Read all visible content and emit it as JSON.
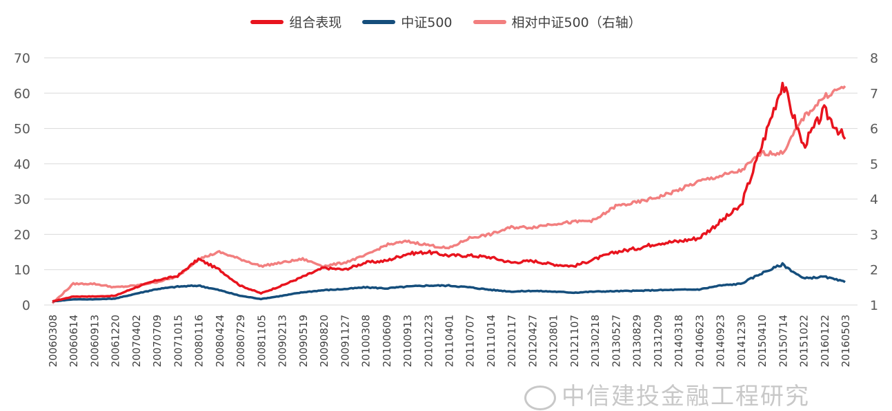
{
  "chart_data": {
    "type": "line",
    "title": "",
    "legend": {
      "placement": "top-center",
      "entries": [
        {
          "label": "组合表现",
          "color": "#e8141e"
        },
        {
          "label": "中证500",
          "color": "#154e7c"
        },
        {
          "label": "相对中证500（右轴）",
          "color": "#f27f7f"
        }
      ]
    },
    "y_left": {
      "min": 0,
      "max": 70,
      "ticks": [
        "0",
        "10",
        "20",
        "30",
        "40",
        "50",
        "60",
        "70"
      ]
    },
    "y_right": {
      "min": 1,
      "max": 8,
      "ticks": [
        "1",
        "2",
        "3",
        "4",
        "5",
        "6",
        "7",
        "8"
      ]
    },
    "grid": true,
    "x_tick_labels": [
      "20060308",
      "20060614",
      "20060913",
      "20061220",
      "20070402",
      "20070709",
      "20071015",
      "20080116",
      "20080424",
      "20080729",
      "20081105",
      "20090213",
      "20090519",
      "20090820",
      "20091127",
      "20100308",
      "20100609",
      "20100913",
      "20101223",
      "20110401",
      "20110707",
      "20111014",
      "20120117",
      "20120427",
      "20120801",
      "20121107",
      "20130218",
      "20130527",
      "20130829",
      "20131209",
      "20140318",
      "20140623",
      "20140923",
      "20141230",
      "20150410",
      "20150714",
      "20151022",
      "20160122",
      "20160503"
    ],
    "series": [
      {
        "name": "组合表现",
        "axis": "left",
        "color": "#e8141e",
        "values": [
          1,
          2.4,
          2.4,
          2.6,
          5,
          7,
          8.2,
          13,
          10,
          5.5,
          3.3,
          5.5,
          8,
          10.5,
          10,
          12,
          12.5,
          14.5,
          15,
          14,
          14,
          13.5,
          12,
          12.5,
          11.5,
          11,
          13,
          15,
          16,
          17.5,
          18,
          19,
          23.5,
          28,
          45,
          63,
          45,
          55,
          47
        ]
      },
      {
        "name": "中证500",
        "axis": "left",
        "color": "#154e7c",
        "values": [
          1,
          1.6,
          1.6,
          1.8,
          3.2,
          4.5,
          5.2,
          5.5,
          4.2,
          2.6,
          1.7,
          2.6,
          3.6,
          4.2,
          4.5,
          5,
          4.7,
          5.2,
          5.5,
          5.5,
          5,
          4.3,
          3.8,
          4,
          3.8,
          3.5,
          3.8,
          3.9,
          4,
          4.2,
          4.3,
          4.4,
          5.5,
          6,
          9,
          11.5,
          7.5,
          8,
          6.5
        ]
      },
      {
        "name": "相对中证500（右轴）",
        "axis": "right",
        "color": "#f27f7f",
        "values": [
          1.05,
          1.6,
          1.6,
          1.5,
          1.55,
          1.65,
          1.8,
          2.3,
          2.5,
          2.3,
          2.1,
          2.2,
          2.3,
          2.1,
          2.2,
          2.4,
          2.7,
          2.8,
          2.7,
          2.6,
          2.9,
          3.0,
          3.2,
          3.2,
          3.3,
          3.35,
          3.4,
          3.8,
          3.9,
          4.05,
          4.25,
          4.5,
          4.65,
          4.8,
          5.3,
          5.3,
          6.3,
          6.9,
          7.2
        ]
      }
    ]
  },
  "watermark": {
    "text": "中信建投金融工程研究"
  }
}
